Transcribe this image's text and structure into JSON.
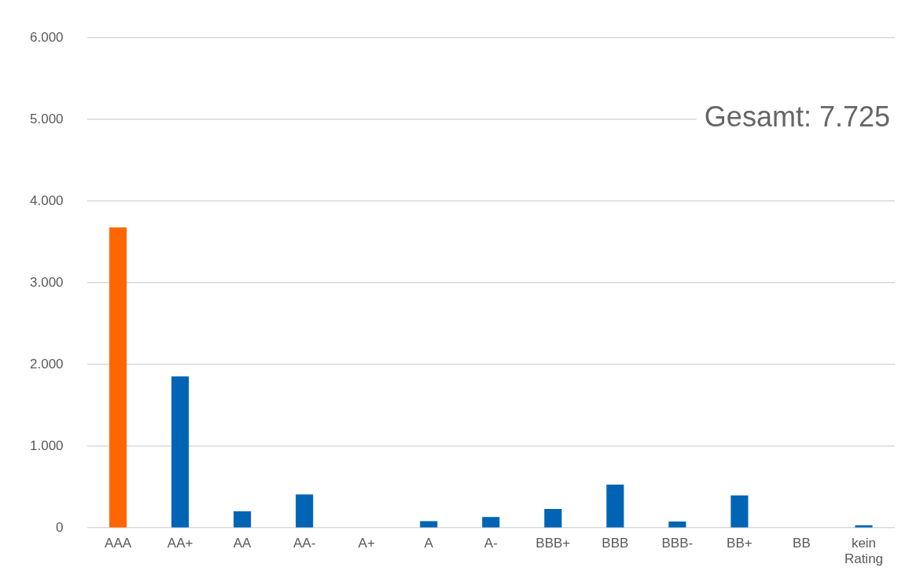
{
  "chart_data": {
    "type": "bar",
    "categories": [
      "AAA",
      "AA+",
      "AA",
      "AA-",
      "A+",
      "A",
      "A-",
      "BBB+",
      "BBB",
      "BBB-",
      "BB+",
      "BB",
      "kein Rating"
    ],
    "values": [
      3680,
      1855,
      205,
      411,
      0,
      84,
      133,
      233,
      531,
      80,
      399,
      0,
      34
    ],
    "colors": [
      "#ff6600",
      "#0064b4",
      "#0064b4",
      "#0064b4",
      "#0064b4",
      "#0064b4",
      "#0064b4",
      "#0064b4",
      "#0064b4",
      "#0064b4",
      "#0064b4",
      "#0064b4",
      "#0064b4"
    ],
    "ylim": [
      0,
      6000
    ],
    "yticks": [
      {
        "value": 0,
        "label": "0"
      },
      {
        "value": 1000,
        "label": "1.000"
      },
      {
        "value": 2000,
        "label": "2.000"
      },
      {
        "value": 3000,
        "label": "3.000"
      },
      {
        "value": 4000,
        "label": "4.000"
      },
      {
        "value": 5000,
        "label": "5.000"
      },
      {
        "value": 6000,
        "label": "6.000"
      }
    ],
    "grid": "y",
    "legend": false,
    "annotations": [
      "Gesamt: 7.725"
    ]
  }
}
